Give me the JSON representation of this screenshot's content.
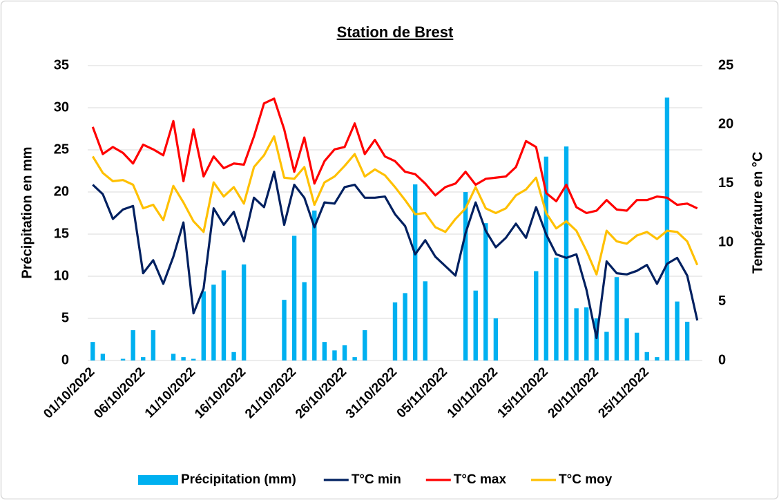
{
  "chart_data": {
    "type": "combo",
    "title": "Station de Brest",
    "y_label": "Précipitation en mm",
    "y2_label": "Température en °C",
    "categories": [
      "01/10/2022",
      null,
      null,
      null,
      null,
      "06/10/2022",
      null,
      null,
      null,
      null,
      "11/10/2022",
      null,
      null,
      null,
      null,
      "16/10/2022",
      null,
      null,
      null,
      null,
      "21/10/2022",
      null,
      null,
      null,
      null,
      "26/10/2022",
      null,
      null,
      null,
      null,
      "31/10/2022",
      null,
      null,
      null,
      null,
      "05/11/2022",
      null,
      null,
      null,
      null,
      "10/11/2022",
      null,
      null,
      null,
      null,
      "15/11/2022",
      null,
      null,
      null,
      null,
      "20/11/2022",
      null,
      null,
      null,
      null,
      "25/11/2022",
      null,
      null,
      null,
      null,
      null
    ],
    "ylim": [
      0,
      35
    ],
    "yticks": [
      0,
      5,
      10,
      15,
      20,
      25,
      30,
      35
    ],
    "y2lim": [
      0,
      25
    ],
    "y2ticks": [
      0,
      5,
      10,
      15,
      20,
      25
    ],
    "grid": true,
    "legend": "bottom",
    "series": [
      {
        "name": "Précipitation (mm)",
        "type": "bar",
        "axis": "y",
        "color": "#00b0f0",
        "values": [
          2.2,
          0.8,
          0,
          0.2,
          3.6,
          0.4,
          3.6,
          0,
          0.8,
          0.4,
          0.2,
          8.2,
          9.0,
          10.7,
          1.0,
          11.4,
          0,
          0,
          0,
          7.2,
          14.8,
          9.3,
          17.8,
          2.2,
          1.2,
          1.8,
          0.4,
          3.6,
          0,
          0,
          6.9,
          8.0,
          20.9,
          9.4,
          0,
          0,
          0,
          20.0,
          8.3,
          16.3,
          5.0,
          0,
          0,
          0,
          10.6,
          24.2,
          12.2,
          25.4,
          6.2,
          6.3,
          5.0,
          3.4,
          9.9,
          5.0,
          3.3,
          1.0,
          0.4,
          31.2,
          7.0,
          4.6,
          0
        ]
      },
      {
        "name": "T°C min",
        "type": "line",
        "axis": "y2",
        "color": "#002060",
        "values": [
          14.9,
          14.1,
          12.0,
          12.8,
          13.1,
          7.4,
          8.5,
          6.5,
          8.8,
          11.7,
          4.0,
          6.1,
          12.9,
          11.5,
          12.6,
          10.1,
          13.8,
          13.0,
          16.0,
          11.5,
          14.9,
          13.8,
          11.3,
          13.4,
          13.3,
          14.7,
          14.9,
          13.8,
          13.8,
          13.9,
          12.4,
          11.4,
          9.0,
          10.2,
          8.8,
          8.0,
          7.2,
          10.8,
          13.4,
          11.0,
          9.6,
          10.4,
          11.6,
          10.4,
          13.0,
          10.7,
          9.0,
          8.7,
          9.0,
          6.0,
          1.9,
          8.4,
          7.4,
          7.3,
          7.6,
          8.1,
          6.5,
          8.2,
          8.7,
          7.2,
          3.4
        ]
      },
      {
        "name": "T°C max",
        "type": "line",
        "axis": "y2",
        "color": "#ff0000",
        "values": [
          19.8,
          17.5,
          18.1,
          17.6,
          16.7,
          18.3,
          17.9,
          17.4,
          20.3,
          15.2,
          19.6,
          15.6,
          17.3,
          16.3,
          16.7,
          16.6,
          19.0,
          21.8,
          22.2,
          19.6,
          16.0,
          18.9,
          15.0,
          16.9,
          17.9,
          18.1,
          20.1,
          17.5,
          18.7,
          17.3,
          16.9,
          16.0,
          15.8,
          15.0,
          14.0,
          14.7,
          15.0,
          16.0,
          14.9,
          15.4,
          15.5,
          15.6,
          16.4,
          18.6,
          18.1,
          14.2,
          13.5,
          14.9,
          13.0,
          12.5,
          12.7,
          13.6,
          12.8,
          12.7,
          13.6,
          13.6,
          13.9,
          13.8,
          13.2,
          13.3,
          12.9
        ]
      },
      {
        "name": "T°C moy",
        "type": "line",
        "axis": "y2",
        "color": "#ffc000",
        "values": [
          17.3,
          15.9,
          15.2,
          15.3,
          14.9,
          12.9,
          13.2,
          11.9,
          14.8,
          13.4,
          11.8,
          10.9,
          15.1,
          13.9,
          14.7,
          13.3,
          16.4,
          17.4,
          19.0,
          15.5,
          15.4,
          16.4,
          13.2,
          15.1,
          15.6,
          16.5,
          17.5,
          15.6,
          16.2,
          15.7,
          14.7,
          13.6,
          12.4,
          12.5,
          11.3,
          10.9,
          12.0,
          12.9,
          14.7,
          12.9,
          12.5,
          12.9,
          14.0,
          14.5,
          15.5,
          12.5,
          11.2,
          11.8,
          11.0,
          9.3,
          7.3,
          11.0,
          10.1,
          9.9,
          10.6,
          10.9,
          10.3,
          11.0,
          10.9,
          10.1,
          8.1
        ]
      }
    ]
  }
}
